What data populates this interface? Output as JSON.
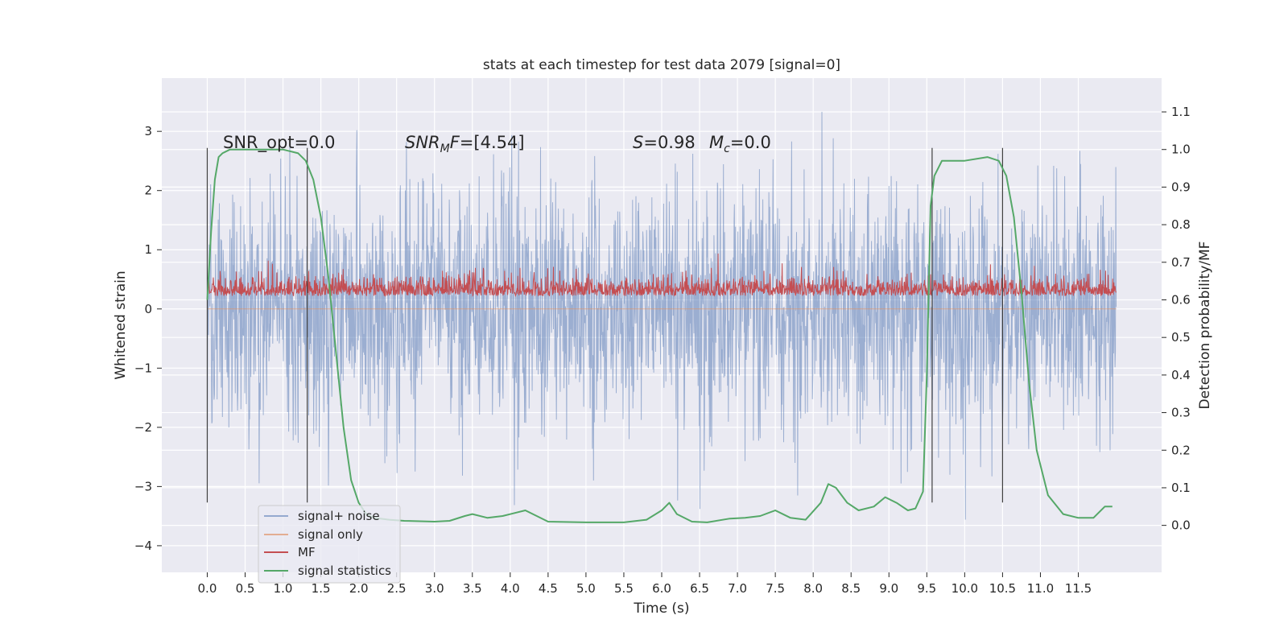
{
  "chart_data": {
    "type": "line",
    "title": "stats at each timestep for test data 2079 [signal=0]",
    "xlabel": "Time (s)",
    "ylabel": "Whitened strain",
    "y2label": "Detection probability/MF",
    "xlim": [
      -0.6,
      12.6
    ],
    "ylim": [
      -4.45,
      3.9
    ],
    "y2lim": [
      -0.125,
      1.19
    ],
    "x_ticks": [
      "0.0",
      "0.5",
      "1.0",
      "1.5",
      "2.0",
      "2.5",
      "3.0",
      "3.5",
      "4.0",
      "4.5",
      "5.0",
      "5.5",
      "6.0",
      "6.5",
      "7.0",
      "7.5",
      "8.0",
      "8.5",
      "9.0",
      "9.5",
      "10.0",
      "10.5",
      "11.0",
      "11.5"
    ],
    "y_ticks": [
      "3",
      "2",
      "1",
      "0",
      "−1",
      "−2",
      "−3",
      "−4"
    ],
    "y2_ticks": [
      "1.1",
      "1.0",
      "0.9",
      "0.8",
      "0.7",
      "0.6",
      "0.5",
      "0.4",
      "0.3",
      "0.2",
      "0.1",
      "0.0"
    ],
    "grid": true,
    "legend_position": "lower-left",
    "annotations": {
      "snr_opt": "SNR_opt=0.0",
      "snr_mf_value": "=[4.54]",
      "s_value": "=0.98",
      "mc_value": "=0.0"
    },
    "vertical_markers": [
      0.0,
      1.32,
      9.57,
      10.5
    ],
    "series": [
      {
        "name": "signal+ noise",
        "color": "#4c72b0",
        "axis": "left",
        "x_range": [
          0.0,
          12.0
        ],
        "y_range": [
          -4.1,
          3.35
        ],
        "description_values": {
          "min": -4.1,
          "max": 3.35
        }
      },
      {
        "name": "signal only",
        "color": "#dd8452",
        "axis": "left",
        "x": [
          0.0,
          12.0
        ],
        "y": [
          0.0,
          0.0
        ]
      },
      {
        "name": "MF",
        "color": "#c44e52",
        "axis": "left",
        "x_range": [
          0.0,
          12.0
        ],
        "y_range": [
          0.0,
          1.0
        ]
      },
      {
        "name": "signal statistics",
        "color": "#55a868",
        "axis": "right",
        "x": [
          0.0,
          0.05,
          0.1,
          0.15,
          0.2,
          0.3,
          0.5,
          1.0,
          1.2,
          1.3,
          1.4,
          1.5,
          1.6,
          1.7,
          1.8,
          1.9,
          2.0,
          2.1,
          2.2,
          2.4,
          2.6,
          3.0,
          3.2,
          3.4,
          3.5,
          3.7,
          3.9,
          4.2,
          4.5,
          5.0,
          5.5,
          5.8,
          6.0,
          6.1,
          6.2,
          6.4,
          6.6,
          6.9,
          7.1,
          7.3,
          7.5,
          7.7,
          7.9,
          8.1,
          8.2,
          8.3,
          8.45,
          8.6,
          8.8,
          8.95,
          9.1,
          9.25,
          9.35,
          9.45,
          9.5,
          9.55,
          9.6,
          9.7,
          9.8,
          10.0,
          10.3,
          10.45,
          10.55,
          10.65,
          10.75,
          10.85,
          10.95,
          11.1,
          11.3,
          11.5,
          11.7,
          11.85,
          11.95
        ],
        "y": [
          0.6,
          0.78,
          0.92,
          0.98,
          0.99,
          1.0,
          1.0,
          1.0,
          0.99,
          0.97,
          0.92,
          0.82,
          0.66,
          0.46,
          0.26,
          0.12,
          0.06,
          0.03,
          0.02,
          0.015,
          0.012,
          0.01,
          0.012,
          0.025,
          0.03,
          0.02,
          0.025,
          0.04,
          0.01,
          0.008,
          0.008,
          0.015,
          0.04,
          0.06,
          0.03,
          0.01,
          0.008,
          0.018,
          0.02,
          0.025,
          0.04,
          0.02,
          0.015,
          0.06,
          0.11,
          0.1,
          0.06,
          0.04,
          0.05,
          0.075,
          0.06,
          0.04,
          0.045,
          0.09,
          0.4,
          0.85,
          0.93,
          0.97,
          0.97,
          0.97,
          0.98,
          0.97,
          0.93,
          0.82,
          0.62,
          0.38,
          0.2,
          0.08,
          0.03,
          0.02,
          0.02,
          0.05,
          0.05
        ]
      }
    ]
  }
}
